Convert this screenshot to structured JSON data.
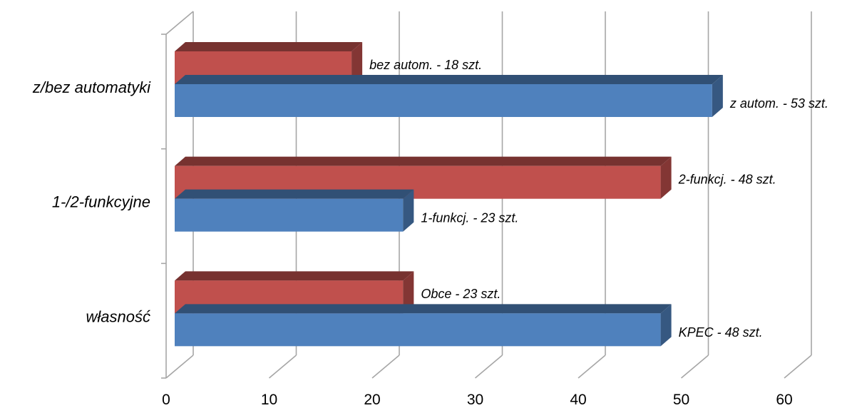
{
  "chart_data": {
    "type": "bar",
    "orientation": "horizontal",
    "three_d": true,
    "categories": [
      "własność",
      "1-/2-funkcyjne",
      "z/bez automatyki"
    ],
    "series": [
      {
        "color": "#4F81BD",
        "values": [
          48,
          23,
          53
        ],
        "labels": [
          "KPEC - 48 szt.",
          "1-funkcj. - 23 szt.",
          "z autom. - 53 szt."
        ]
      },
      {
        "color": "#C0504D",
        "values": [
          23,
          48,
          18
        ],
        "labels": [
          "Obce - 23 szt.",
          "2-funkcj. - 48 szt.",
          "bez autom. - 18 szt."
        ]
      }
    ],
    "xlim": [
      0,
      60
    ],
    "x_ticks": [
      "0",
      "10",
      "20",
      "30",
      "40",
      "50",
      "60"
    ],
    "grid": true,
    "legend": "none"
  }
}
